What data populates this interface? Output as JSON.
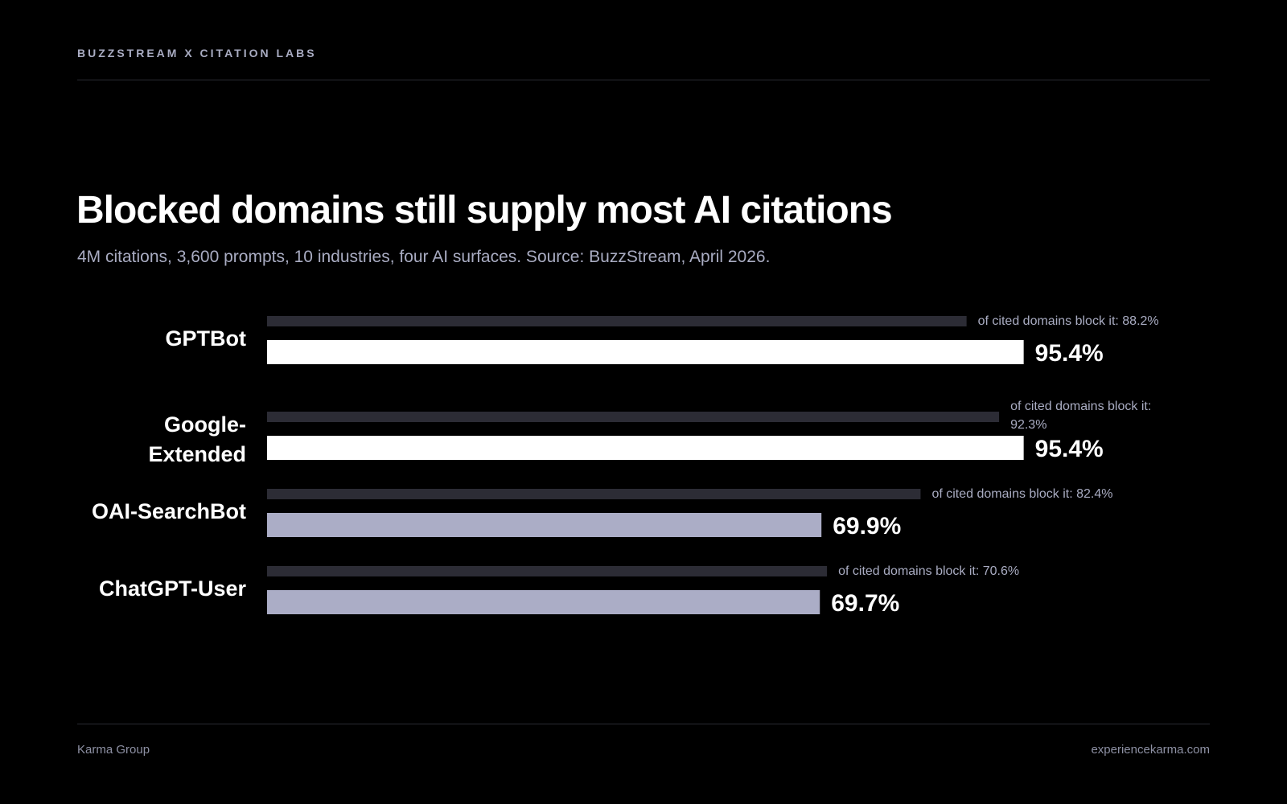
{
  "header": {
    "kicker": "BUZZSTREAM X CITATION LABS"
  },
  "title": "Blocked domains still supply most AI citations",
  "subtitle": "4M citations, 3,600 prompts, 10 industries, four AI surfaces. Source: BuzzStream, April 2026.",
  "footer": {
    "left": "Karma Group",
    "right": "experiencekarma.com"
  },
  "colors": {
    "background": "#000000",
    "bar_bright": "#ffffff",
    "bar_muted": "#abadc6",
    "bar_secondary": "#2c2c35",
    "secondary_label": "#a9acc2"
  },
  "chart_data": {
    "type": "bar",
    "orientation": "horizontal",
    "categories": [
      "GPTBot",
      "Google-Extended",
      "OAI-SearchBot",
      "ChatGPT-User"
    ],
    "category_labels": [
      [
        "GPTBot"
      ],
      [
        "Google-",
        "Extended"
      ],
      [
        "OAI-SearchBot"
      ],
      [
        "ChatGPT-User"
      ]
    ],
    "series": [
      {
        "values": [
          88.2,
          92.3,
          82.4,
          70.6
        ],
        "labels": [
          [
            "of cited domains block it: 88.2%"
          ],
          [
            "of cited domains block it:",
            "92.3%"
          ],
          [
            "of cited domains block it: 82.4%"
          ],
          [
            "of cited domains block it: 70.6%"
          ]
        ]
      },
      {
        "values": [
          95.4,
          95.4,
          69.9,
          69.7
        ],
        "labels": [
          "95.4%",
          "95.4%",
          "69.9%",
          "69.7%"
        ]
      }
    ],
    "xlim": [
      0,
      100
    ],
    "grid": false,
    "legend": "none"
  }
}
